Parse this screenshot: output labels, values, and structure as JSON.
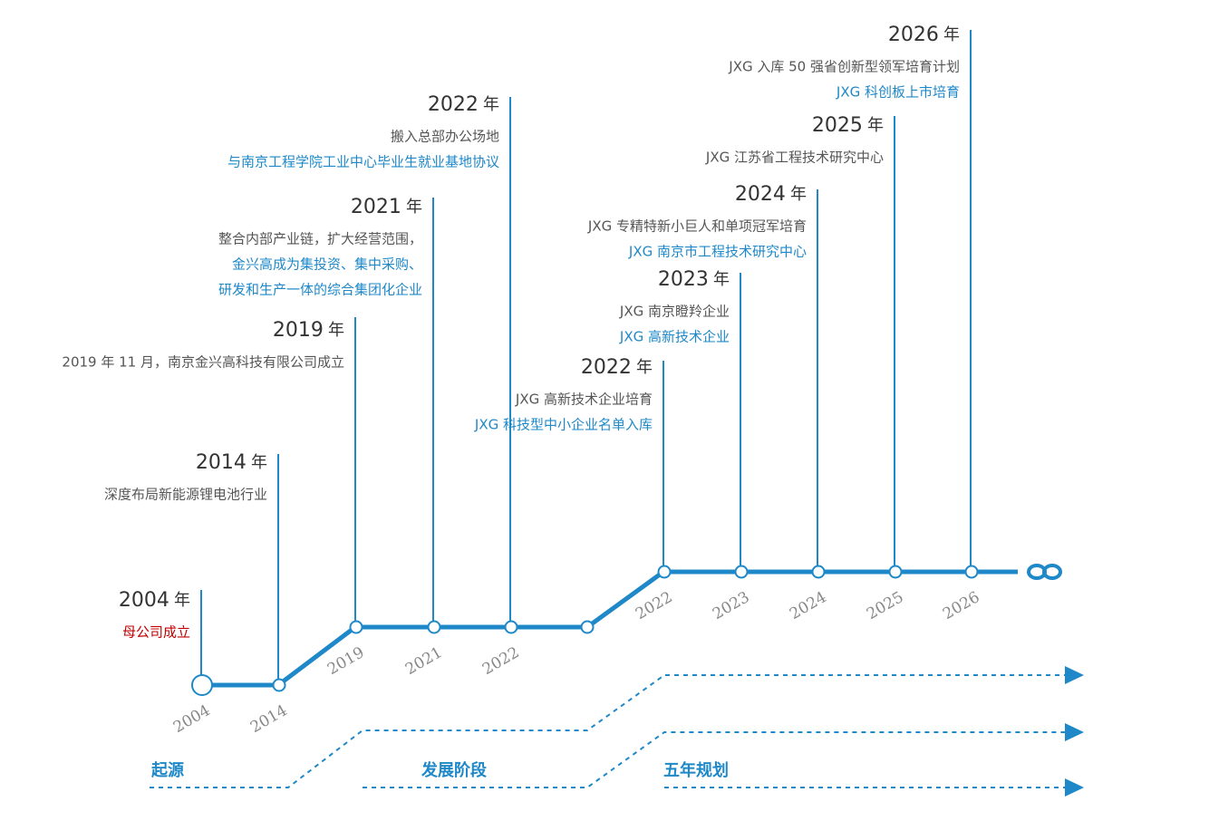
{
  "milestones": [
    {
      "year": "2004",
      "unit": "年",
      "lines": [
        {
          "text": "母公司成立",
          "tone": "red"
        }
      ]
    },
    {
      "year": "2014",
      "unit": "年",
      "lines": [
        {
          "text": "深度布局新能源锂电池行业",
          "tone": "gray"
        }
      ]
    },
    {
      "year": "2019",
      "unit": "年",
      "lines": [
        {
          "text": "2019 年 11 月，南京金兴高科技有限公司成立",
          "tone": "gray"
        }
      ]
    },
    {
      "year": "2021",
      "unit": "年",
      "lines": [
        {
          "text": "整合内部产业链，扩大经营范围，",
          "tone": "gray"
        },
        {
          "text": "金兴高成为集投资、集中采购、",
          "tone": "blue"
        },
        {
          "text": "研发和生产一体的综合集团化企业",
          "tone": "blue"
        }
      ]
    },
    {
      "year": "2022",
      "unit": "年",
      "lines": [
        {
          "text": "搬入总部办公场地",
          "tone": "gray"
        },
        {
          "text": "与南京工程学院工业中心毕业生就业基地协议",
          "tone": "blue"
        }
      ]
    },
    {
      "year": "2022",
      "unit": "年",
      "lines": [
        {
          "text": "JXG 高新技术企业培育",
          "tone": "gray"
        },
        {
          "text": "JXG 科技型中小企业名单入库",
          "tone": "blue"
        }
      ]
    },
    {
      "year": "2023",
      "unit": "年",
      "lines": [
        {
          "text": "JXG 南京瞪羚企业",
          "tone": "gray"
        },
        {
          "text": "JXG 高新技术企业",
          "tone": "blue"
        }
      ]
    },
    {
      "year": "2024",
      "unit": "年",
      "lines": [
        {
          "text": "JXG 专精特新小巨人和单项冠军培育",
          "tone": "gray"
        },
        {
          "text": "JXG 南京市工程技术研究中心",
          "tone": "blue"
        }
      ]
    },
    {
      "year": "2025",
      "unit": "年",
      "lines": [
        {
          "text": "JXG 江苏省工程技术研究中心",
          "tone": "gray"
        }
      ]
    },
    {
      "year": "2026",
      "unit": "年",
      "lines": [
        {
          "text": "JXG 入库 50 强省创新型领军培育计划",
          "tone": "gray"
        },
        {
          "text": "JXG 科创板上市培育",
          "tone": "blue"
        }
      ]
    }
  ],
  "axis_labels": [
    "2004",
    "2014",
    "2019",
    "2021",
    "2022",
    "2022",
    "2023",
    "2024",
    "2025",
    "2026"
  ],
  "phases": [
    "起源",
    "发展阶段",
    "五年规划"
  ]
}
